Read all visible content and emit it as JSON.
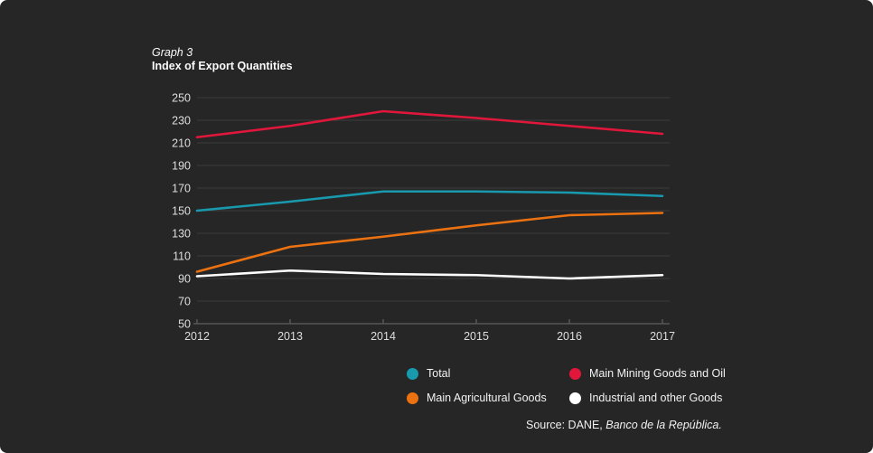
{
  "title": {
    "kicker": "Graph 3",
    "heading": "Index of Export Quantities"
  },
  "chart_data": {
    "type": "line",
    "title": "Index of Export Quantities",
    "categories": [
      "2012",
      "2013",
      "2014",
      "2015",
      "2016",
      "2017"
    ],
    "series": [
      {
        "name": "Total",
        "color": "#1899ae",
        "values": [
          150,
          158,
          167,
          167,
          166,
          163
        ]
      },
      {
        "name": "Main Mining Goods and Oil",
        "color": "#e0173a",
        "values": [
          215,
          225,
          238,
          232,
          225,
          218
        ]
      },
      {
        "name": "Main Agricultural Goods",
        "color": "#ec7211",
        "values": [
          96,
          118,
          127,
          137,
          146,
          148
        ]
      },
      {
        "name": "Industrial and other Goods",
        "color": "#ffffff",
        "values": [
          92,
          97,
          94,
          93,
          90,
          93
        ]
      }
    ],
    "xlabel": "",
    "ylabel": "",
    "ylim": [
      50,
      250
    ],
    "ytick_step": 20,
    "grid": true,
    "legend_position": "bottom"
  },
  "colors": {
    "panel_bg": "#262626",
    "grid": "#3c3c3c",
    "axis": "#565656",
    "tick_text": "#dedede"
  },
  "source": {
    "prefix": "Source: DANE, ",
    "italic": "Banco de la República."
  }
}
